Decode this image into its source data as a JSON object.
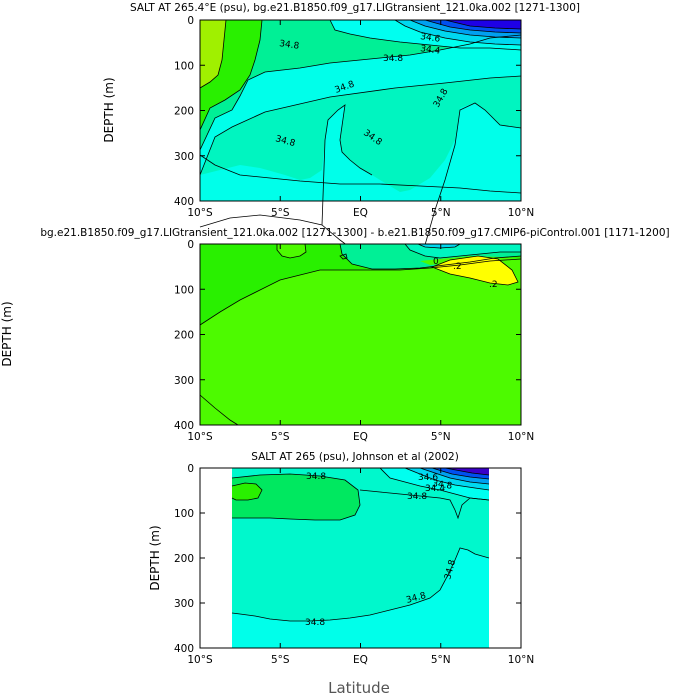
{
  "figure": {
    "xlabel": "Latitude"
  },
  "colors": {
    "cyan_low": "#00ffea",
    "aqua": "#00f5c0",
    "mint": "#00f096",
    "green_bright": "#29f000",
    "lime": "#4dfa00",
    "yellowgreen": "#a0f000",
    "yellow": "#ffff00",
    "cyan_light": "#00fff0",
    "cyan_mid": "#00d8f0",
    "blue_light": "#00a0f0",
    "blue": "#0050f0",
    "blue_dark": "#1e00e6",
    "violet": "#3a00c8",
    "sea": "#00f8cc",
    "green_mid": "#00e860",
    "contour": "#000000"
  },
  "chart_data": [
    {
      "type": "heatmap",
      "title": "SALT AT 265.4°E (psu), bg.e21.B1850.f09_g17.LIGtransient_121.0ka.002 [1271-1300]",
      "ylabel": "DEPTH (m)",
      "xlabel": "",
      "xlim": [
        -10,
        10
      ],
      "ylim": [
        400,
        0
      ],
      "x_ticks": [
        "10°S",
        "5°S",
        "EQ",
        "5°N",
        "10°N"
      ],
      "y_ticks": [
        "0",
        "100",
        "200",
        "300",
        "400"
      ],
      "contour_labels": [
        "34.8",
        "34.8",
        "34.6",
        "34.4",
        "34.8",
        "34.8",
        "34.8",
        "34.8",
        "34.8"
      ],
      "contours": [
        {
          "level": 34.8,
          "points": [
            [
              -10,
              280
            ],
            [
              -7,
              220
            ],
            [
              -2,
              210
            ],
            [
              0,
              230
            ],
            [
              2,
              280
            ],
            [
              4,
              295
            ],
            [
              5.5,
              250
            ],
            [
              6,
              200
            ],
            [
              6.5,
              150
            ],
            [
              7.5,
              120
            ],
            [
              8.5,
              125
            ],
            [
              10,
              130
            ]
          ]
        },
        {
          "level": 34.9,
          "points": [
            [
              -10,
              300
            ],
            [
              -8,
              330
            ],
            [
              -5,
              350
            ],
            [
              0,
              360
            ],
            [
              5,
              370
            ],
            [
              8,
              395
            ],
            [
              10,
              380
            ]
          ]
        },
        {
          "level": 34.8,
          "points": [
            [
              -10,
              175
            ],
            [
              -8,
              95
            ],
            [
              -6,
              80
            ],
            [
              -4,
              75
            ],
            [
              0,
              60
            ],
            [
              3,
              55
            ],
            [
              6,
              65
            ],
            [
              8,
              60
            ],
            [
              10,
              55
            ]
          ]
        }
      ]
    },
    {
      "type": "heatmap",
      "title": "bg.e21.B1850.f09_g17.LIGtransient_121.0ka.002 [1271-1300] - b.e21.B1850.f09_g17.CMIP6-piControl.001 [1171-1200]",
      "ylabel": "DEPTH (m)",
      "xlabel": "",
      "xlim": [
        -10,
        10
      ],
      "ylim": [
        400,
        0
      ],
      "x_ticks": [
        "10°S",
        "5°S",
        "EQ",
        "5°N",
        "10°N"
      ],
      "y_ticks": [
        "0",
        "100",
        "200",
        "300",
        "400"
      ],
      "contour_labels": [
        "0",
        ".2",
        ".2"
      ],
      "contours": [
        {
          "level": 0.0,
          "points": [
            [
              -10,
              180
            ],
            [
              -7,
              135
            ],
            [
              -4,
              100
            ],
            [
              -2,
              65
            ],
            [
              0,
              58
            ],
            [
              3,
              50
            ],
            [
              6,
              45
            ],
            [
              8,
              40
            ],
            [
              10,
              35
            ]
          ]
        },
        {
          "level": 0.0,
          "points": [
            [
              -10,
              335
            ],
            [
              -8,
              370
            ],
            [
              -6,
              400
            ]
          ]
        },
        {
          "level": 0.2,
          "points": [
            [
              3.5,
              50
            ],
            [
              5,
              40
            ],
            [
              7,
              38
            ],
            [
              8.5,
              48
            ],
            [
              9.6,
              85
            ],
            [
              8,
              90
            ],
            [
              6,
              80
            ],
            [
              4.3,
              68
            ],
            [
              3.5,
              50
            ]
          ]
        }
      ]
    },
    {
      "type": "heatmap",
      "title": "SALT AT 265 (psu), Johnson et al (2002)",
      "ylabel": "DEPTH (m)",
      "xlabel": "Latitude",
      "xlim": [
        -10,
        10
      ],
      "ylim": [
        400,
        0
      ],
      "data_x_range": [
        -8,
        8
      ],
      "x_ticks": [
        "10°S",
        "5°S",
        "EQ",
        "5°N",
        "10°N"
      ],
      "y_ticks": [
        "0",
        "100",
        "200",
        "300",
        "400"
      ],
      "contour_labels": [
        "34.8",
        "34.8",
        "34.6",
        "34.4",
        "34.8",
        "34.8",
        "34.8",
        "34.8"
      ],
      "contours": [
        {
          "level": 34.8,
          "points": [
            [
              -8,
              330
            ],
            [
              -6,
              345
            ],
            [
              -4,
              345
            ],
            [
              -2,
              335
            ],
            [
              0,
              325
            ],
            [
              2,
              315
            ],
            [
              3.5,
              300
            ],
            [
              5,
              280
            ],
            [
              6,
              170
            ],
            [
              7,
              180
            ],
            [
              8,
              200
            ]
          ]
        },
        {
          "level": 34.8,
          "points": [
            [
              -8,
              80
            ],
            [
              -6,
              80
            ],
            [
              -4,
              82
            ],
            [
              -2,
              80
            ],
            [
              0,
              60
            ],
            [
              2,
              48
            ],
            [
              4,
              45
            ],
            [
              5.5,
              50
            ],
            [
              6,
              110
            ],
            [
              6.5,
              60
            ],
            [
              8,
              40
            ]
          ]
        }
      ]
    }
  ]
}
